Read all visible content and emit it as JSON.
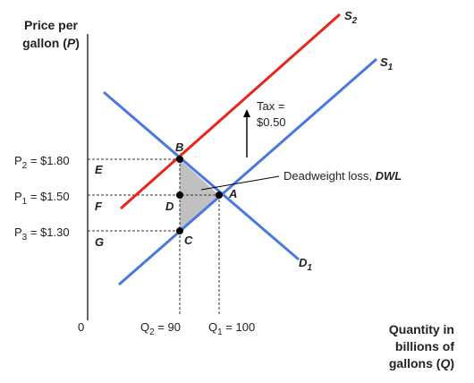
{
  "y_axis_label": {
    "line1": "Price per",
    "line2_prefix": "gallon (",
    "line2_var": "P",
    "line2_suffix": ")"
  },
  "x_axis_label": {
    "line1": "Quantity in",
    "line2": "billions of",
    "line3_prefix": "gallons (",
    "line3_var": "Q",
    "line3_suffix": ")"
  },
  "origin_label": "0",
  "prices": [
    {
      "var": "P",
      "sub": "2",
      "text": " = $1.80"
    },
    {
      "var": "P",
      "sub": "1",
      "text": " = $1.50"
    },
    {
      "var": "P",
      "sub": "3",
      "text": " = $1.30"
    }
  ],
  "quantities": [
    {
      "var": "Q",
      "sub": "2",
      "text": " = 90"
    },
    {
      "var": "Q",
      "sub": "1",
      "text": " = 100"
    }
  ],
  "curves": {
    "s2": {
      "var": "S",
      "sub": "2",
      "color": "#e8241c"
    },
    "s1": {
      "var": "S",
      "sub": "1",
      "color": "#4a78e0"
    },
    "d1": {
      "var": "D",
      "sub": "1",
      "color": "#4a78e0"
    }
  },
  "points": {
    "a": "A",
    "b": "B",
    "c": "C",
    "d": "D"
  },
  "areas": {
    "e": "E",
    "f": "F",
    "g": "G"
  },
  "tax": {
    "line1": "Tax =",
    "line2": "$0.50"
  },
  "dwl": {
    "text": "Deadweight loss, ",
    "abbr": "DWL",
    "fill": "#c0c0c0"
  }
}
